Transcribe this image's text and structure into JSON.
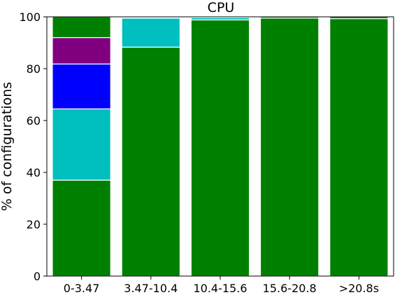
{
  "chart_data": {
    "type": "bar",
    "stacked": true,
    "title": "CPU",
    "xlabel": "",
    "ylabel": "% of configurations",
    "ylim": [
      0,
      100
    ],
    "yticks": [
      0,
      20,
      40,
      60,
      80,
      100
    ],
    "categories": [
      "0-3.47",
      "3.47-10.4",
      "10.4-15.6",
      "15.6-20.8",
      ">20.8s"
    ],
    "series": [
      {
        "color": "#008000",
        "values": [
          37,
          88.3,
          98.8,
          99.5,
          99.3
        ]
      },
      {
        "color": "#00BFBF",
        "values": [
          27.5,
          11.2,
          0.9,
          0,
          0
        ]
      },
      {
        "color": "#0000FF",
        "values": [
          17.3,
          0.3,
          0.1,
          0,
          0
        ]
      },
      {
        "color": "#800080",
        "values": [
          10.2,
          0,
          0,
          0,
          0
        ]
      },
      {
        "color": "#008000",
        "values": [
          8,
          0.2,
          0.2,
          0.5,
          0.7
        ]
      }
    ],
    "grid": false,
    "legend": "none"
  }
}
